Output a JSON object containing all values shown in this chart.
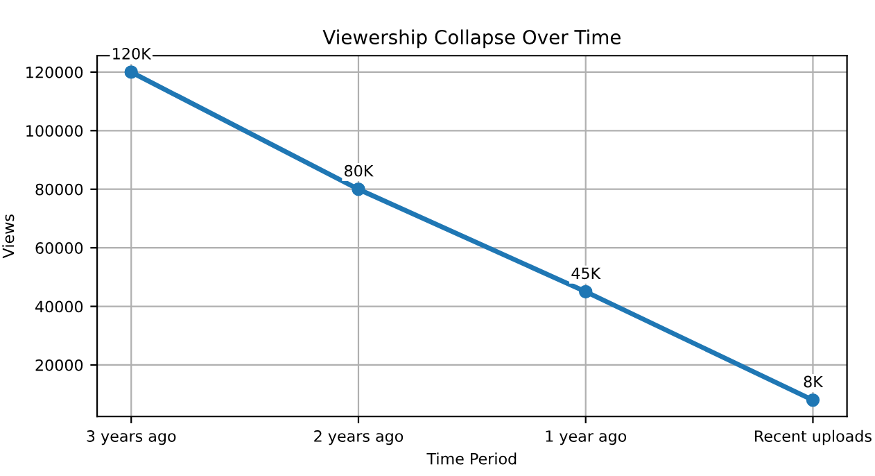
{
  "chart_data": {
    "type": "line",
    "title": "Viewership Collapse Over Time",
    "xlabel": "Time Period",
    "ylabel": "Views",
    "categories": [
      "3 years ago",
      "2 years ago",
      "1 year ago",
      "Recent uploads"
    ],
    "series": [
      {
        "color": "#1f77b4",
        "values": [
          120000,
          80000,
          45000,
          8000
        ],
        "value_labels": [
          "120K",
          "80K",
          "45K",
          "8K"
        ]
      }
    ],
    "ylim": [
      2400,
      125600
    ],
    "yticks": [
      20000,
      40000,
      60000,
      80000,
      100000,
      120000
    ],
    "grid": true,
    "marker": "circle",
    "line_style": "solid",
    "legend": false
  }
}
